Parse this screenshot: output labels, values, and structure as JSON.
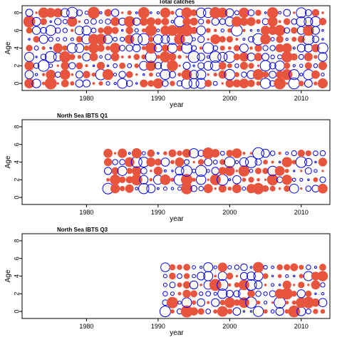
{
  "colors": {
    "positive": "#e8553e",
    "negative": "#0000ee",
    "frame": "#000000"
  },
  "chart_data": [
    {
      "type": "scatter",
      "title": "Total catches",
      "xlabel": "year",
      "ylabel": "Age",
      "xlim": [
        1971,
        2014
      ],
      "ylim": [
        -0.8,
        8.8
      ],
      "xticks": [
        "1980",
        "1990",
        "2000",
        "2010"
      ],
      "yticks": [
        "0",
        "2",
        "4",
        "6",
        "8"
      ],
      "years": [
        1972,
        2013
      ],
      "ages": [
        0,
        8
      ]
    },
    {
      "type": "scatter",
      "title": "North Sea IBTS Q1",
      "xlabel": "year",
      "ylabel": "Age",
      "xlim": [
        1971,
        2014
      ],
      "ylim": [
        -0.8,
        8.8
      ],
      "xticks": [
        "1980",
        "1990",
        "2000",
        "2010"
      ],
      "yticks": [
        "0",
        "2",
        "4",
        "6",
        "8"
      ],
      "years": [
        1983,
        2013
      ],
      "ages": [
        1,
        5
      ]
    },
    {
      "type": "scatter",
      "title": "North Sea IBTS Q3",
      "xlabel": "year",
      "ylabel": "Age",
      "xlim": [
        1971,
        2014
      ],
      "ylim": [
        -0.8,
        8.8
      ],
      "xticks": [
        "1980",
        "1990",
        "2000",
        "2010"
      ],
      "yticks": [
        "0",
        "2",
        "4",
        "6",
        "8"
      ],
      "years": [
        1991,
        2013
      ],
      "ages": [
        0,
        5
      ]
    }
  ]
}
